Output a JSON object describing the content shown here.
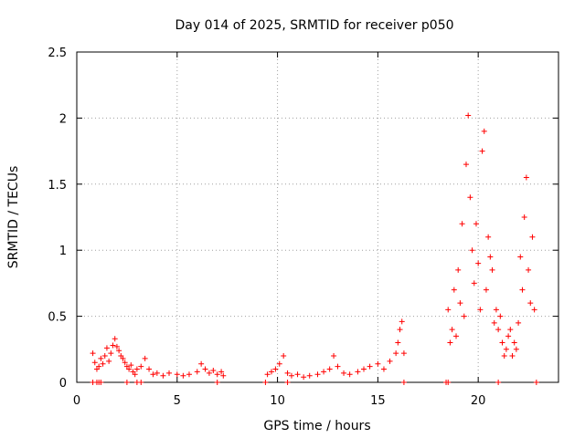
{
  "chart_data": {
    "type": "scatter",
    "title": "Day 014 of 2025, SRMTID for receiver p050",
    "xlabel": "GPS time / hours",
    "ylabel": "SRMTID / TECUs",
    "xlim": [
      0,
      24
    ],
    "ylim": [
      0,
      2.5
    ],
    "xticks": [
      0,
      5,
      10,
      15,
      20
    ],
    "yticks": [
      0,
      0.5,
      1,
      1.5,
      2,
      2.5
    ],
    "xtick_labels": [
      "0",
      "5",
      "10",
      "15",
      "20"
    ],
    "ytick_labels": [
      "0",
      "0.5",
      "1",
      "1.5",
      "2",
      "2.5"
    ],
    "grid": true,
    "marker": "+",
    "color": "#ff0000",
    "series": [
      {
        "name": "p050",
        "segments": [
          {
            "x": [
              0.8,
              0.9,
              1.0,
              1.1,
              1.2,
              1.3,
              1.4,
              1.5,
              1.6,
              1.7,
              1.8,
              1.9,
              2.0,
              2.1,
              2.2,
              2.3,
              2.4,
              2.5,
              2.6,
              2.7,
              2.8,
              2.9,
              3.0,
              3.2,
              3.4,
              3.6,
              3.8,
              4.0,
              4.3,
              4.6,
              5.0,
              5.3,
              5.6,
              6.0,
              6.2,
              6.4,
              6.6,
              6.8,
              7.0,
              7.2,
              7.3
            ],
            "y": [
              0.22,
              0.15,
              0.1,
              0.12,
              0.18,
              0.14,
              0.2,
              0.26,
              0.16,
              0.22,
              0.28,
              0.33,
              0.27,
              0.24,
              0.2,
              0.18,
              0.15,
              0.12,
              0.1,
              0.13,
              0.08,
              0.06,
              0.1,
              0.12,
              0.18,
              0.1,
              0.06,
              0.07,
              0.05,
              0.07,
              0.06,
              0.05,
              0.06,
              0.08,
              0.14,
              0.1,
              0.07,
              0.09,
              0.06,
              0.08,
              0.05
            ]
          },
          {
            "x": [
              9.5,
              9.7,
              9.9,
              10.1,
              10.3,
              10.5,
              10.7,
              11.0,
              11.3,
              11.6,
              12.0,
              12.3,
              12.6,
              12.8,
              13.0,
              13.3,
              13.6,
              14.0,
              14.3,
              14.6,
              15.0,
              15.3,
              15.6,
              15.9,
              16.0,
              16.1,
              16.2,
              16.3
            ],
            "y": [
              0.06,
              0.08,
              0.1,
              0.14,
              0.2,
              0.07,
              0.05,
              0.06,
              0.04,
              0.05,
              0.06,
              0.08,
              0.1,
              0.2,
              0.12,
              0.07,
              0.06,
              0.08,
              0.1,
              0.12,
              0.14,
              0.1,
              0.16,
              0.22,
              0.3,
              0.4,
              0.46,
              0.22
            ]
          },
          {
            "x": [
              18.5,
              18.6,
              18.7,
              18.8,
              18.9,
              19.0,
              19.1,
              19.2,
              19.3,
              19.4,
              19.5,
              19.6,
              19.7,
              19.8,
              19.9,
              20.0,
              20.1,
              20.2,
              20.3,
              20.4,
              20.5,
              20.6,
              20.7,
              20.8,
              20.9,
              21.0
            ],
            "y": [
              0.55,
              0.3,
              0.4,
              0.7,
              0.35,
              0.85,
              0.6,
              1.2,
              0.5,
              1.65,
              2.02,
              1.4,
              1.0,
              0.75,
              1.2,
              0.9,
              0.55,
              1.75,
              1.9,
              0.7,
              1.1,
              0.95,
              0.85,
              0.45,
              0.55,
              0.4
            ]
          },
          {
            "x": [
              21.1,
              21.2,
              21.3,
              21.4,
              21.5,
              21.6,
              21.7,
              21.8,
              21.9,
              22.0,
              22.1,
              22.2,
              22.3,
              22.4,
              22.5,
              22.6,
              22.7,
              22.8
            ],
            "y": [
              0.5,
              0.3,
              0.2,
              0.25,
              0.35,
              0.4,
              0.2,
              0.3,
              0.25,
              0.45,
              0.95,
              0.7,
              1.25,
              1.55,
              0.85,
              0.6,
              1.1,
              0.55
            ]
          }
        ],
        "zero_points_x": [
          0.8,
          1.0,
          1.1,
          1.2,
          2.5,
          3.0,
          3.2,
          7.0,
          9.4,
          10.5,
          16.3,
          18.4,
          18.5,
          21.0,
          22.9
        ]
      }
    ]
  }
}
